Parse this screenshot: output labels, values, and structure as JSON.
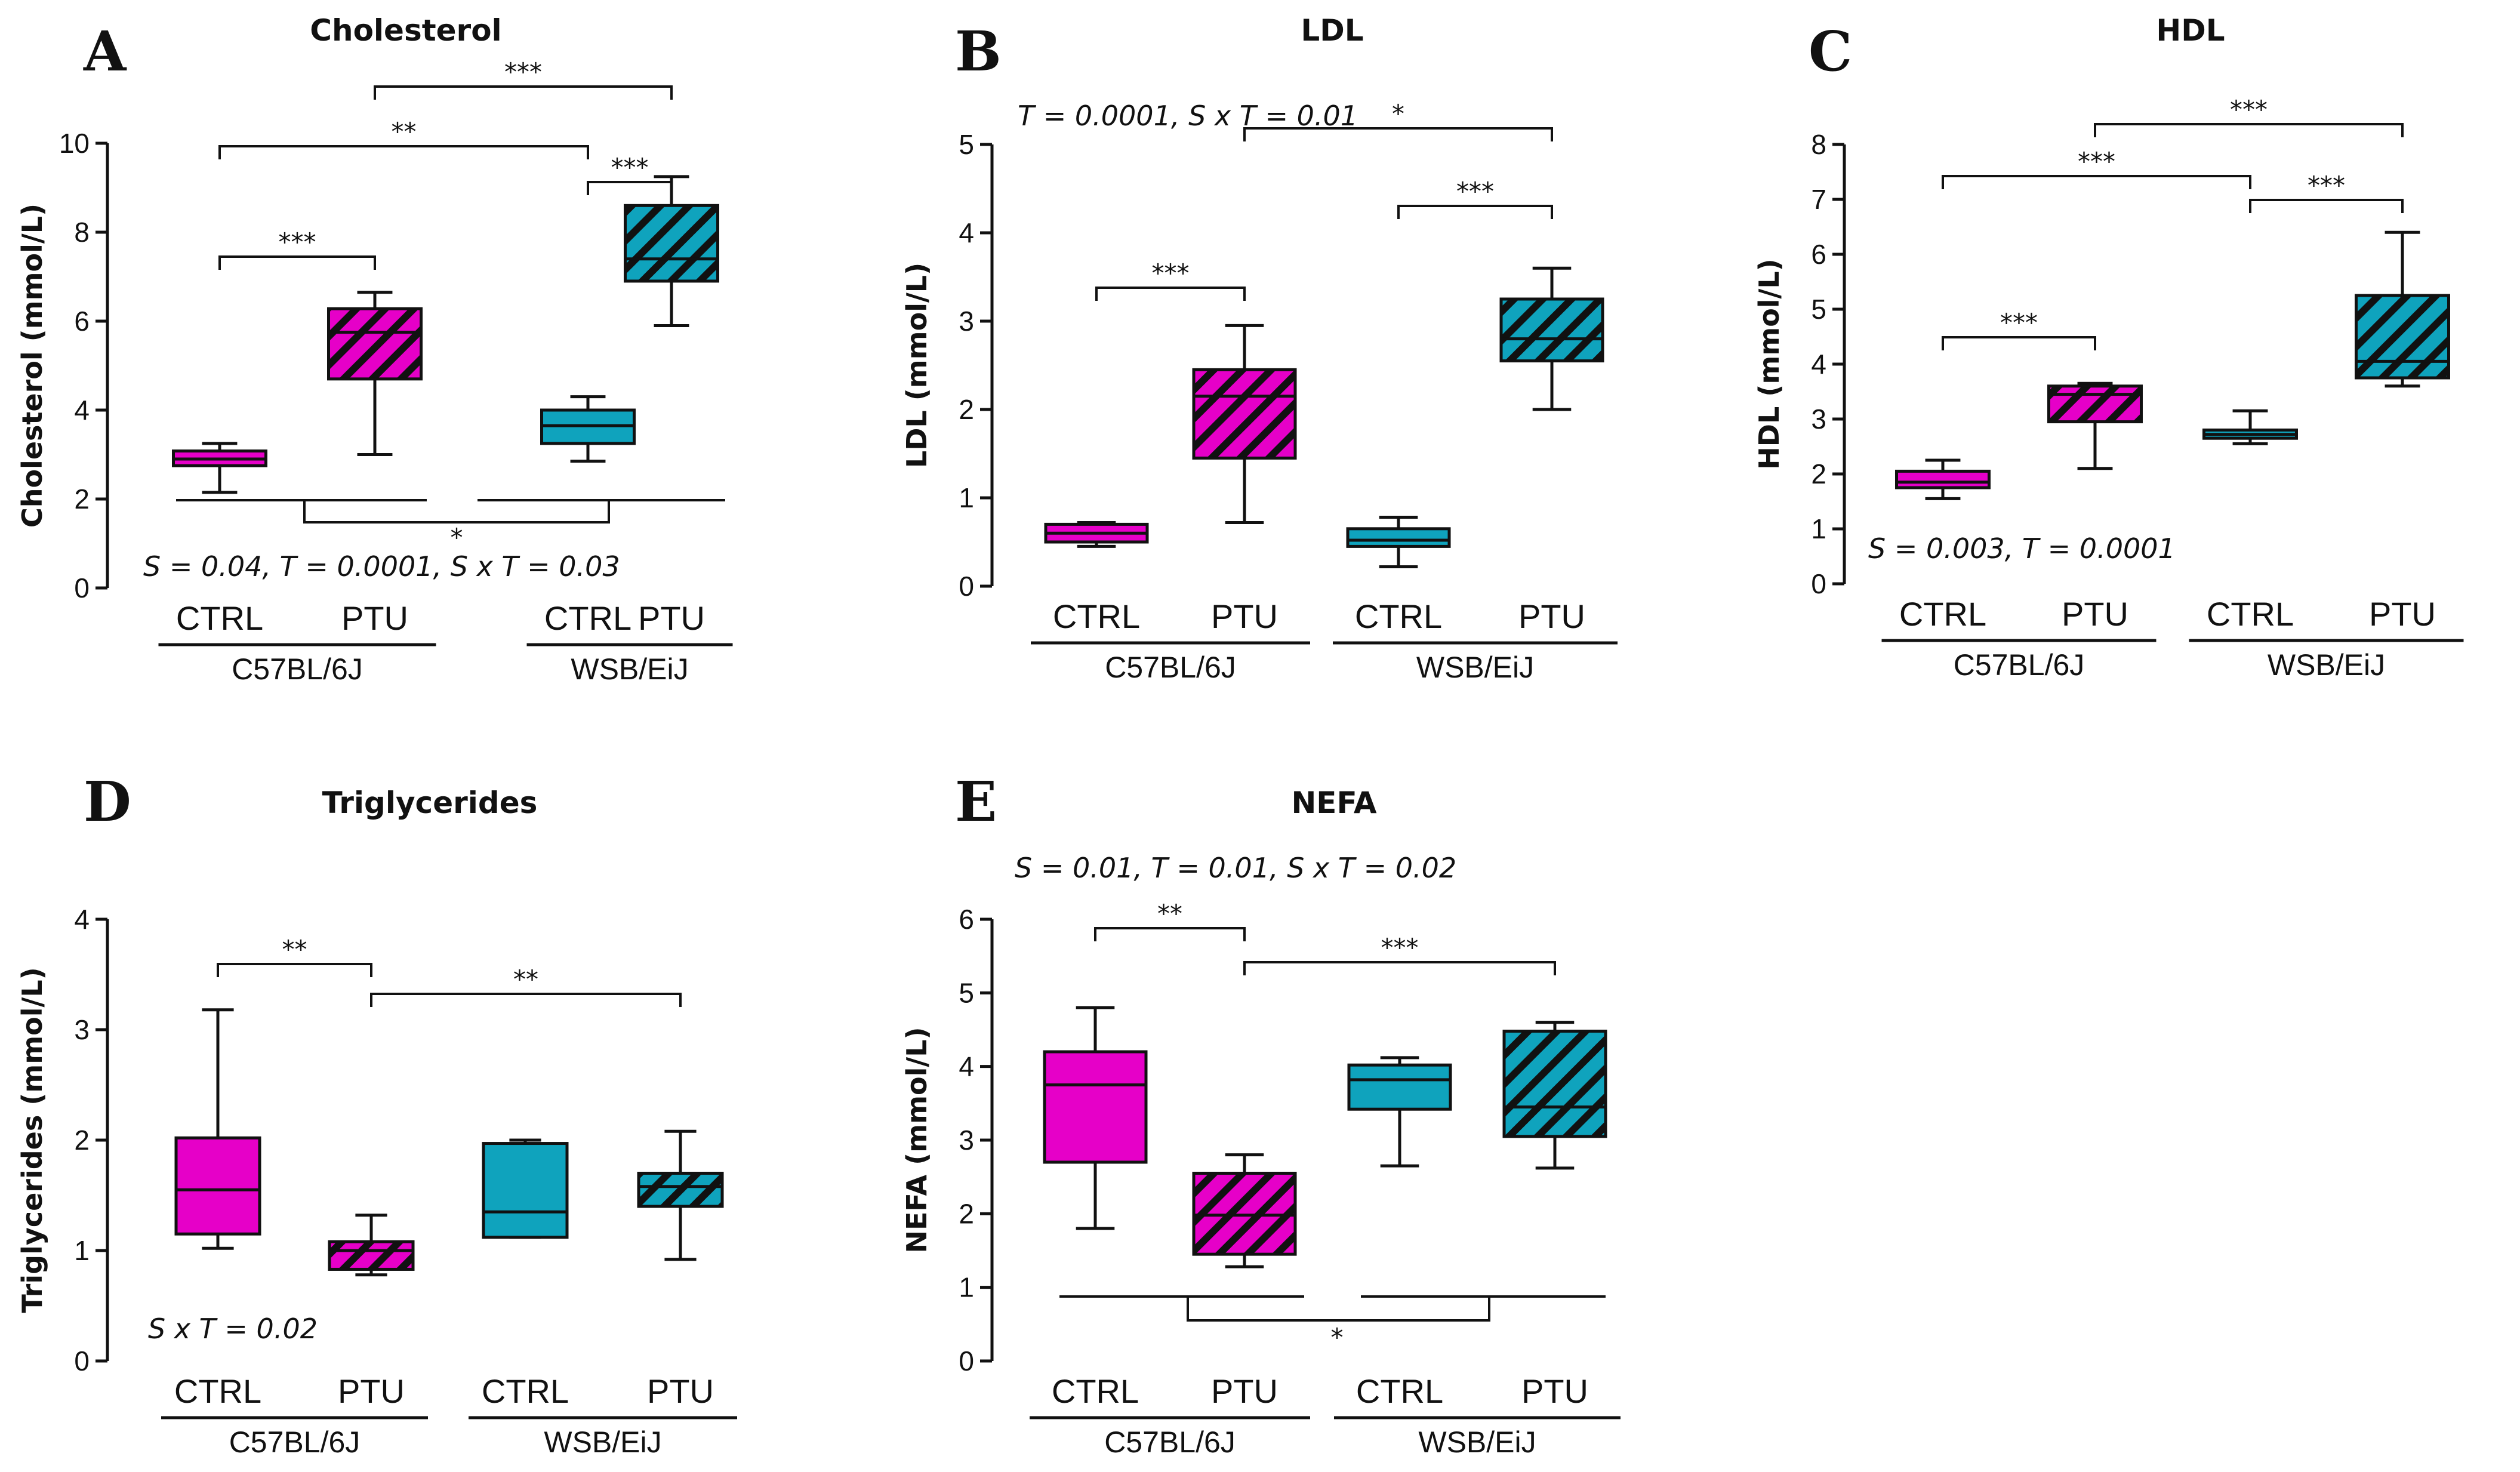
{
  "colors": {
    "c57": "#e600c8",
    "wsb": "#0fa3bd",
    "line": "#111111",
    "hatch": "#111111"
  },
  "chart_data": [
    {
      "type": "box",
      "letter": "A",
      "title": "Cholesterol",
      "ylabel": "Cholesterol (mmol/L)",
      "ylim": [
        0,
        10
      ],
      "yticks": [
        0,
        2,
        4,
        6,
        8,
        10
      ],
      "categories": [
        "CTRL",
        "PTU",
        "CTRL",
        "PTU"
      ],
      "strains": [
        "C57BL/6J",
        "WSB/EiJ"
      ],
      "boxes": [
        {
          "min": 2.15,
          "q1": 2.75,
          "median": 2.9,
          "q3": 3.08,
          "max": 3.25,
          "strain": "C57BL/6J",
          "treatment": "CTRL"
        },
        {
          "min": 3.0,
          "q1": 4.7,
          "median": 5.75,
          "q3": 6.28,
          "max": 6.65,
          "strain": "C57BL/6J",
          "treatment": "PTU"
        },
        {
          "min": 2.85,
          "q1": 3.25,
          "median": 3.65,
          "q3": 4.0,
          "max": 4.3,
          "strain": "WSB/EiJ",
          "treatment": "CTRL"
        },
        {
          "min": 5.9,
          "q1": 6.9,
          "median": 7.4,
          "q3": 8.6,
          "max": 9.25,
          "strain": "WSB/EiJ",
          "treatment": "PTU"
        }
      ],
      "comparisons": [
        {
          "from": 0,
          "to": 1,
          "label": "***"
        },
        {
          "from": 0,
          "to": 2,
          "label": "**"
        },
        {
          "from": 2,
          "to": 3,
          "label": "***"
        },
        {
          "from": 1,
          "to": 3,
          "label": "***"
        }
      ],
      "strain_comparison": {
        "label": "*"
      },
      "stats_text": "S = 0.04, T = 0.0001, S x T = 0.03"
    },
    {
      "type": "box",
      "letter": "B",
      "title": "LDL",
      "ylabel": "LDL (mmol/L)",
      "ylim": [
        0,
        5
      ],
      "yticks": [
        0,
        1,
        2,
        3,
        4,
        5
      ],
      "categories": [
        "CTRL",
        "PTU",
        "CTRL",
        "PTU"
      ],
      "strains": [
        "C57BL/6J",
        "WSB/EiJ"
      ],
      "boxes": [
        {
          "min": 0.45,
          "q1": 0.5,
          "median": 0.6,
          "q3": 0.7,
          "max": 0.72,
          "strain": "C57BL/6J",
          "treatment": "CTRL"
        },
        {
          "min": 0.72,
          "q1": 1.45,
          "median": 2.15,
          "q3": 2.45,
          "max": 2.95,
          "strain": "C57BL/6J",
          "treatment": "PTU"
        },
        {
          "min": 0.22,
          "q1": 0.45,
          "median": 0.52,
          "q3": 0.65,
          "max": 0.78,
          "strain": "WSB/EiJ",
          "treatment": "CTRL"
        },
        {
          "min": 2.0,
          "q1": 2.55,
          "median": 2.8,
          "q3": 3.25,
          "max": 3.6,
          "strain": "WSB/EiJ",
          "treatment": "PTU"
        }
      ],
      "comparisons": [
        {
          "from": 0,
          "to": 1,
          "label": "***"
        },
        {
          "from": 2,
          "to": 3,
          "label": "***"
        },
        {
          "from": 1,
          "to": 3,
          "label": "*"
        }
      ],
      "stats_text": "T = 0.0001,  S x T = 0.01"
    },
    {
      "type": "box",
      "letter": "C",
      "title": "HDL",
      "ylabel": "HDL (mmol/L)",
      "ylim": [
        0,
        8
      ],
      "yticks": [
        0,
        1,
        2,
        3,
        4,
        5,
        6,
        7,
        8
      ],
      "categories": [
        "CTRL",
        "PTU",
        "CTRL",
        "PTU"
      ],
      "strains": [
        "C57BL/6J",
        "WSB/EiJ"
      ],
      "boxes": [
        {
          "min": 1.55,
          "q1": 1.75,
          "median": 1.85,
          "q3": 2.05,
          "max": 2.25,
          "strain": "C57BL/6J",
          "treatment": "CTRL"
        },
        {
          "min": 2.1,
          "q1": 2.95,
          "median": 3.45,
          "q3": 3.6,
          "max": 3.65,
          "strain": "C57BL/6J",
          "treatment": "PTU"
        },
        {
          "min": 2.55,
          "q1": 2.65,
          "median": 2.72,
          "q3": 2.8,
          "max": 3.15,
          "strain": "WSB/EiJ",
          "treatment": "CTRL"
        },
        {
          "min": 3.6,
          "q1": 3.75,
          "median": 4.05,
          "q3": 5.25,
          "max": 6.4,
          "strain": "WSB/EiJ",
          "treatment": "PTU"
        }
      ],
      "comparisons": [
        {
          "from": 0,
          "to": 1,
          "label": "***"
        },
        {
          "from": 0,
          "to": 2,
          "label": "***"
        },
        {
          "from": 2,
          "to": 3,
          "label": "***"
        },
        {
          "from": 1,
          "to": 3,
          "label": "***"
        }
      ],
      "stats_text": "S = 0.003, T = 0.0001"
    },
    {
      "type": "box",
      "letter": "D",
      "title": "Triglycerides",
      "ylabel": "Triglycerides (mmol/L)",
      "ylim": [
        0,
        4
      ],
      "yticks": [
        0,
        1,
        2,
        3,
        4
      ],
      "categories": [
        "CTRL",
        "PTU",
        "CTRL",
        "PTU"
      ],
      "strains": [
        "C57BL/6J",
        "WSB/EiJ"
      ],
      "boxes": [
        {
          "min": 1.02,
          "q1": 1.15,
          "median": 1.55,
          "q3": 2.02,
          "max": 3.18,
          "strain": "C57BL/6J",
          "treatment": "CTRL"
        },
        {
          "min": 0.78,
          "q1": 0.83,
          "median": 1.0,
          "q3": 1.08,
          "max": 1.32,
          "strain": "C57BL/6J",
          "treatment": "PTU"
        },
        {
          "min": 1.12,
          "q1": 1.12,
          "median": 1.35,
          "q3": 1.97,
          "max": 2.0,
          "strain": "WSB/EiJ",
          "treatment": "CTRL"
        },
        {
          "min": 0.92,
          "q1": 1.4,
          "median": 1.58,
          "q3": 1.7,
          "max": 2.08,
          "strain": "WSB/EiJ",
          "treatment": "PTU"
        }
      ],
      "comparisons": [
        {
          "from": 0,
          "to": 1,
          "label": "**"
        },
        {
          "from": 1,
          "to": 3,
          "label": "**"
        }
      ],
      "stats_text": "S x T = 0.02"
    },
    {
      "type": "box",
      "letter": "E",
      "title": "NEFA",
      "ylabel": "NEFA (mmol/L)",
      "ylim": [
        0,
        6
      ],
      "yticks": [
        0,
        1,
        2,
        3,
        4,
        5,
        6
      ],
      "categories": [
        "CTRL",
        "PTU",
        "CTRL",
        "PTU"
      ],
      "strains": [
        "C57BL/6J",
        "WSB/EiJ"
      ],
      "boxes": [
        {
          "min": 1.8,
          "q1": 2.7,
          "median": 3.75,
          "q3": 4.2,
          "max": 4.8,
          "strain": "C57BL/6J",
          "treatment": "CTRL"
        },
        {
          "min": 1.28,
          "q1": 1.45,
          "median": 1.98,
          "q3": 2.55,
          "max": 2.8,
          "strain": "C57BL/6J",
          "treatment": "PTU"
        },
        {
          "min": 2.65,
          "q1": 3.42,
          "median": 3.82,
          "q3": 4.02,
          "max": 4.12,
          "strain": "WSB/EiJ",
          "treatment": "CTRL"
        },
        {
          "min": 2.62,
          "q1": 3.05,
          "median": 3.45,
          "q3": 4.48,
          "max": 4.6,
          "strain": "WSB/EiJ",
          "treatment": "PTU"
        }
      ],
      "comparisons": [
        {
          "from": 0,
          "to": 1,
          "label": "**"
        },
        {
          "from": 1,
          "to": 3,
          "label": "***"
        }
      ],
      "strain_comparison": {
        "label": "*"
      },
      "stats_text": "S = 0.01, T = 0.01,  S x T = 0.02"
    }
  ]
}
